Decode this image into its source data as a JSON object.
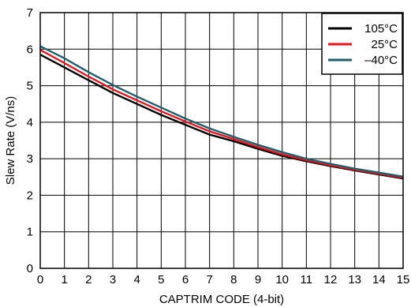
{
  "chart_data": {
    "type": "line",
    "xlabel": "CAPTRIM CODE (4-bit)",
    "ylabel": "Slew Rate (V/ns)",
    "xlim": [
      0,
      15
    ],
    "ylim": [
      0,
      7
    ],
    "x_ticks": [
      "0",
      "1",
      "2",
      "3",
      "4",
      "5",
      "6",
      "7",
      "8",
      "9",
      "10",
      "11",
      "12",
      "13",
      "14",
      "15"
    ],
    "y_ticks": [
      "0",
      "1",
      "2",
      "3",
      "4",
      "5",
      "6",
      "7"
    ],
    "grid": true,
    "legend_position": "top-right",
    "x": [
      0,
      1,
      2,
      3,
      4,
      5,
      6,
      7,
      8,
      9,
      10,
      11,
      12,
      13,
      14,
      15
    ],
    "series": [
      {
        "name": "105°C",
        "color": "#000000",
        "values": [
          5.85,
          5.5,
          5.15,
          4.8,
          4.5,
          4.2,
          3.93,
          3.66,
          3.48,
          3.27,
          3.08,
          2.93,
          2.8,
          2.68,
          2.57,
          2.46
        ]
      },
      {
        "name": "25°C",
        "color": "#e8141c",
        "values": [
          5.98,
          5.62,
          5.25,
          4.9,
          4.6,
          4.3,
          4.02,
          3.75,
          3.54,
          3.32,
          3.12,
          2.96,
          2.82,
          2.7,
          2.59,
          2.48
        ]
      },
      {
        "name": "–40°C",
        "color": "#1e5f6e",
        "values": [
          6.08,
          5.75,
          5.37,
          5.02,
          4.7,
          4.4,
          4.1,
          3.83,
          3.6,
          3.38,
          3.18,
          3.0,
          2.86,
          2.73,
          2.62,
          2.51
        ]
      }
    ]
  }
}
